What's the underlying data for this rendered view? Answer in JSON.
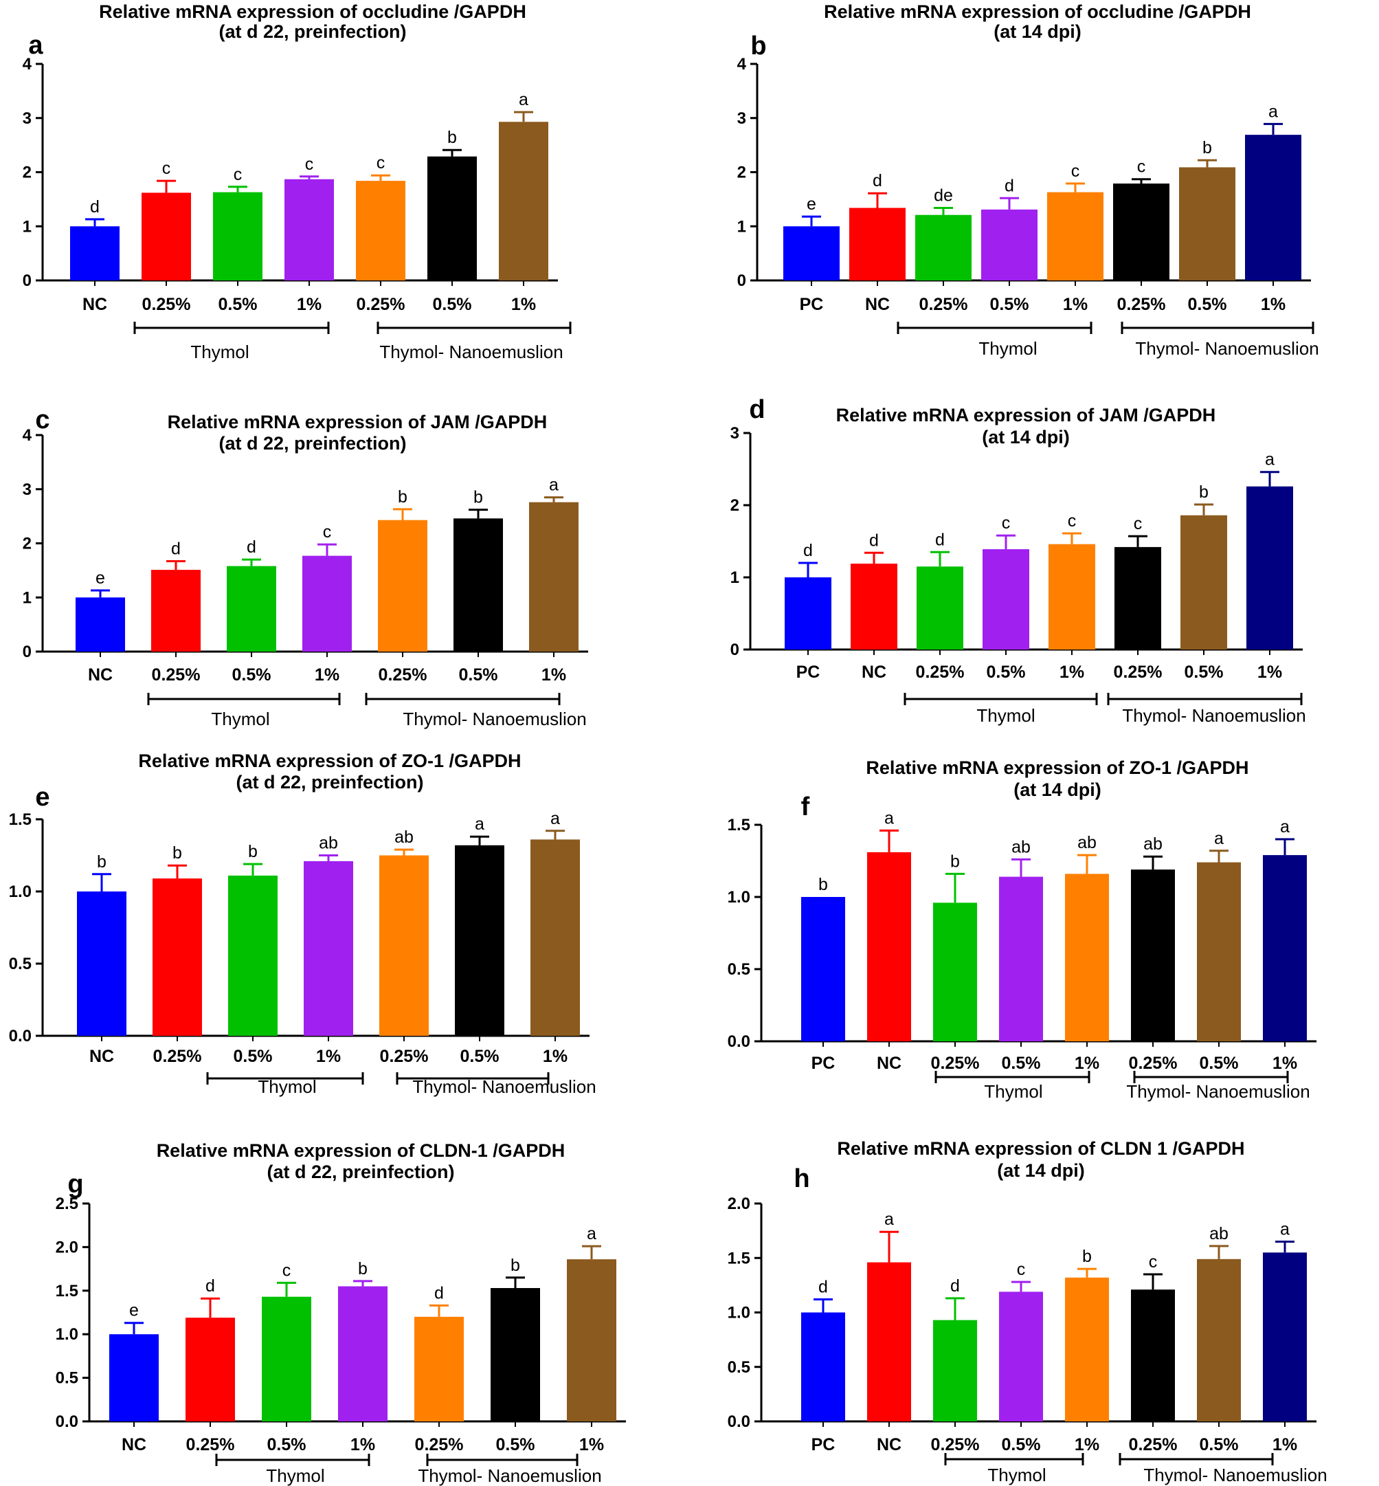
{
  "chart_data": [
    {
      "id": "a",
      "type": "bar",
      "panel_label": "a",
      "title_line1": "Relative mRNA expression of occludine /GAPDH",
      "title_line2": "(at d 22, preinfection)",
      "categories": [
        "NC",
        "0.25%",
        "0.5%",
        "1%",
        "0.25%",
        "0.5%",
        "1%"
      ],
      "values": [
        1.0,
        1.62,
        1.63,
        1.87,
        1.84,
        2.29,
        2.93
      ],
      "errors": [
        0.13,
        0.22,
        0.1,
        0.05,
        0.1,
        0.12,
        0.18
      ],
      "letters": [
        "d",
        "c",
        "c",
        "c",
        "c",
        "b",
        "a"
      ],
      "colors": [
        "#0000ff",
        "#ff0000",
        "#00c000",
        "#a020f0",
        "#ff8000",
        "#000000",
        "#8b5a1e"
      ],
      "ylim": [
        0,
        4
      ],
      "yticks": [
        "0",
        "1",
        "2",
        "3",
        "4"
      ],
      "groups": [
        {
          "label": "Thymol",
          "from": 1,
          "to": 3
        },
        {
          "label": "Thymol- Nanoemuslion",
          "from": 4,
          "to": 6
        }
      ]
    },
    {
      "id": "b",
      "type": "bar",
      "panel_label": "b",
      "title_line1": "Relative mRNA expression of occludine /GAPDH",
      "title_line2": "(at 14 dpi)",
      "categories": [
        "PC",
        "NC",
        "0.25%",
        "0.5%",
        "1%",
        "0.25%",
        "0.5%",
        "1%"
      ],
      "values": [
        1.0,
        1.34,
        1.21,
        1.31,
        1.63,
        1.79,
        2.09,
        2.69
      ],
      "errors": [
        0.18,
        0.27,
        0.13,
        0.21,
        0.16,
        0.08,
        0.13,
        0.2
      ],
      "letters": [
        "e",
        "d",
        "de",
        "d",
        "c",
        "c",
        "b",
        "a"
      ],
      "colors": [
        "#0000ff",
        "#ff0000",
        "#00c000",
        "#a020f0",
        "#ff8000",
        "#000000",
        "#8b5a1e",
        "#000080"
      ],
      "ylim": [
        0,
        4
      ],
      "yticks": [
        "0",
        "1",
        "2",
        "3",
        "4"
      ],
      "groups": [
        {
          "label": "Thymol",
          "from": 2,
          "to": 4
        },
        {
          "label": "Thymol- Nanoemuslion",
          "from": 5,
          "to": 7
        }
      ]
    },
    {
      "id": "c",
      "type": "bar",
      "panel_label": "c",
      "title_line1": "Relative mRNA expression of JAM /GAPDH",
      "title_line2": "(at d 22, preinfection)",
      "categories": [
        "NC",
        "0.25%",
        "0.5%",
        "1%",
        "0.25%",
        "0.5%",
        "1%"
      ],
      "values": [
        1.0,
        1.51,
        1.58,
        1.77,
        2.43,
        2.46,
        2.76
      ],
      "errors": [
        0.13,
        0.16,
        0.12,
        0.21,
        0.2,
        0.16,
        0.09
      ],
      "letters": [
        "e",
        "d",
        "d",
        "c",
        "b",
        "b",
        "a"
      ],
      "colors": [
        "#0000ff",
        "#ff0000",
        "#00c000",
        "#a020f0",
        "#ff8000",
        "#000000",
        "#8b5a1e"
      ],
      "ylim": [
        0,
        4
      ],
      "yticks": [
        "0",
        "1",
        "2",
        "3",
        "4"
      ],
      "groups": [
        {
          "label": "Thymol",
          "from": 1,
          "to": 3
        },
        {
          "label": "Thymol- Nanoemuslion",
          "from": 4,
          "to": 6
        }
      ]
    },
    {
      "id": "d",
      "type": "bar",
      "panel_label": "d",
      "title_line1": "Relative mRNA expression of JAM /GAPDH",
      "title_line2": "(at 14 dpi)",
      "categories": [
        "PC",
        "NC",
        "0.25%",
        "0.5%",
        "1%",
        "0.25%",
        "0.5%",
        "1%"
      ],
      "values": [
        1.0,
        1.19,
        1.15,
        1.39,
        1.46,
        1.42,
        1.86,
        2.26
      ],
      "errors": [
        0.2,
        0.15,
        0.2,
        0.19,
        0.15,
        0.15,
        0.15,
        0.2
      ],
      "letters": [
        "d",
        "d",
        "d",
        "c",
        "c",
        "c",
        "b",
        "a"
      ],
      "colors": [
        "#0000ff",
        "#ff0000",
        "#00c000",
        "#a020f0",
        "#ff8000",
        "#000000",
        "#8b5a1e",
        "#000080"
      ],
      "ylim": [
        0,
        3
      ],
      "yticks": [
        "0",
        "1",
        "2",
        "3"
      ],
      "groups": [
        {
          "label": "Thymol",
          "from": 2,
          "to": 4
        },
        {
          "label": "Thymol- Nanoemuslion",
          "from": 5,
          "to": 7
        }
      ]
    },
    {
      "id": "e",
      "type": "bar",
      "panel_label": "e",
      "title_line1": "Relative mRNA expression of ZO-1 /GAPDH",
      "title_line2": "(at d 22, preinfection)",
      "categories": [
        "NC",
        "0.25%",
        "0.5%",
        "1%",
        "0.25%",
        "0.5%",
        "1%"
      ],
      "values": [
        1.0,
        1.09,
        1.11,
        1.21,
        1.25,
        1.32,
        1.36
      ],
      "errors": [
        0.12,
        0.09,
        0.08,
        0.04,
        0.04,
        0.06,
        0.06
      ],
      "letters": [
        "b",
        "b",
        "b",
        "ab",
        "ab",
        "a",
        "a"
      ],
      "colors": [
        "#0000ff",
        "#ff0000",
        "#00c000",
        "#a020f0",
        "#ff8000",
        "#000000",
        "#8b5a1e"
      ],
      "ylim": [
        0,
        1.5
      ],
      "yticks": [
        "0.0",
        "0.5",
        "1.0",
        "1.5"
      ],
      "groups": [
        {
          "label": "Thymol",
          "from": 2,
          "to": 3
        },
        {
          "label": "Thymol- Nanoemuslion",
          "from": 5,
          "to": 6
        }
      ]
    },
    {
      "id": "f",
      "type": "bar",
      "panel_label": "f",
      "title_line1": "Relative mRNA expression of ZO-1 /GAPDH",
      "title_line2": "(at 14 dpi)",
      "categories": [
        "PC",
        "NC",
        "0.25%",
        "0.5%",
        "1%",
        "0.25%",
        "0.5%",
        "1%"
      ],
      "values": [
        1.0,
        1.31,
        0.96,
        1.14,
        1.16,
        1.19,
        1.24,
        1.29
      ],
      "errors": [
        0.0,
        0.15,
        0.2,
        0.12,
        0.13,
        0.09,
        0.08,
        0.11
      ],
      "letters": [
        "b",
        "a",
        "b",
        "ab",
        "ab",
        "ab",
        "a",
        "a"
      ],
      "colors": [
        "#0000ff",
        "#ff0000",
        "#00c000",
        "#a020f0",
        "#ff8000",
        "#000000",
        "#8b5a1e",
        "#000080"
      ],
      "ylim": [
        0,
        1.5
      ],
      "yticks": [
        "0.0",
        "0.5",
        "1.0",
        "1.5"
      ],
      "groups": [
        {
          "label": "Thymol",
          "from": 2,
          "to": 4
        },
        {
          "label": "Thymol- Nanoemuslion",
          "from": 5,
          "to": 7
        }
      ]
    },
    {
      "id": "g",
      "type": "bar",
      "panel_label": "g",
      "title_line1": "Relative mRNA expression of CLDN-1 /GAPDH",
      "title_line2": "(at d 22, preinfection)",
      "categories": [
        "NC",
        "0.25%",
        "0.5%",
        "1%",
        "0.25%",
        "0.5%",
        "1%"
      ],
      "values": [
        1.0,
        1.19,
        1.43,
        1.55,
        1.2,
        1.53,
        1.86
      ],
      "errors": [
        0.13,
        0.22,
        0.16,
        0.06,
        0.13,
        0.12,
        0.15
      ],
      "letters": [
        "e",
        "d",
        "c",
        "b",
        "d",
        "b",
        "a"
      ],
      "colors": [
        "#0000ff",
        "#ff0000",
        "#00c000",
        "#a020f0",
        "#ff8000",
        "#000000",
        "#8b5a1e"
      ],
      "ylim": [
        0,
        2.5
      ],
      "yticks": [
        "0.0",
        "0.5",
        "1.0",
        "1.5",
        "2.0",
        "2.5"
      ],
      "groups": [
        {
          "label": "Thymol",
          "from": 2,
          "to": 3
        },
        {
          "label": "Thymol- Nanoemuslion",
          "from": 5,
          "to": 6
        }
      ]
    },
    {
      "id": "h",
      "type": "bar",
      "panel_label": "h",
      "title_line1": "Relative mRNA expression of CLDN 1 /GAPDH",
      "title_line2": "(at 14 dpi)",
      "categories": [
        "PC",
        "NC",
        "0.25%",
        "0.5%",
        "1%",
        "0.25%",
        "0.5%",
        "1%"
      ],
      "values": [
        1.0,
        1.46,
        0.93,
        1.19,
        1.32,
        1.21,
        1.49,
        1.55
      ],
      "errors": [
        0.12,
        0.28,
        0.2,
        0.09,
        0.08,
        0.14,
        0.12,
        0.1
      ],
      "letters": [
        "d",
        "a",
        "d",
        "c",
        "b",
        "c",
        "ab",
        "a"
      ],
      "colors": [
        "#0000ff",
        "#ff0000",
        "#00c000",
        "#a020f0",
        "#ff8000",
        "#000000",
        "#8b5a1e",
        "#000080"
      ],
      "ylim": [
        0,
        2.0
      ],
      "yticks": [
        "0.0",
        "0.5",
        "1.0",
        "1.5",
        "2.0"
      ],
      "groups": [
        {
          "label": "Thymol",
          "from": 2,
          "to": 4
        },
        {
          "label": "Thymol- Nanoemuslion",
          "from": 5,
          "to": 7
        }
      ]
    }
  ]
}
